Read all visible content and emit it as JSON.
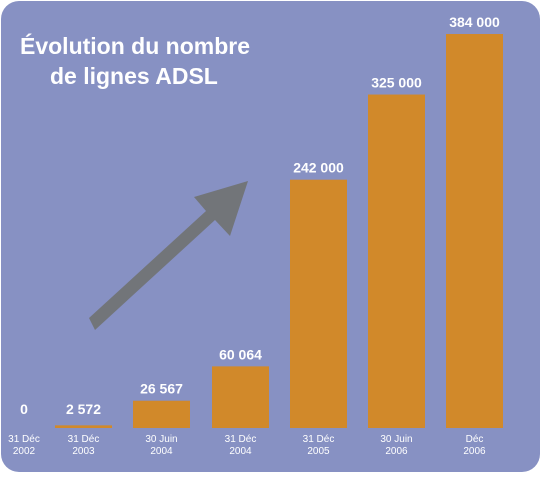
{
  "colors": {
    "background": "#8791c3",
    "bar": "#d1892a",
    "text": "#ffffff",
    "arrow": "#727579"
  },
  "chart_data": {
    "type": "bar",
    "title_lines": [
      "Évolution du nombre",
      "de lignes ADSL"
    ],
    "xlabel": "",
    "ylabel": "",
    "ylim": [
      0,
      384000
    ],
    "grid": false,
    "legend": "none",
    "categories": [
      [
        "31 Déc",
        "2002"
      ],
      [
        "31 Déc",
        "2003"
      ],
      [
        "30 Juin",
        "2004"
      ],
      [
        "31 Déc",
        "2004"
      ],
      [
        "31 Déc",
        "2005"
      ],
      [
        "30 Juin",
        "2006"
      ],
      [
        "Déc",
        "2006"
      ]
    ],
    "values": [
      0,
      2572,
      26567,
      60064,
      242000,
      325000,
      384000
    ],
    "value_labels": [
      "0",
      "2 572",
      "26 567",
      "60 064",
      "242 000",
      "325 000",
      "384 000"
    ],
    "annotations": [
      "upward-trend-arrow"
    ]
  }
}
